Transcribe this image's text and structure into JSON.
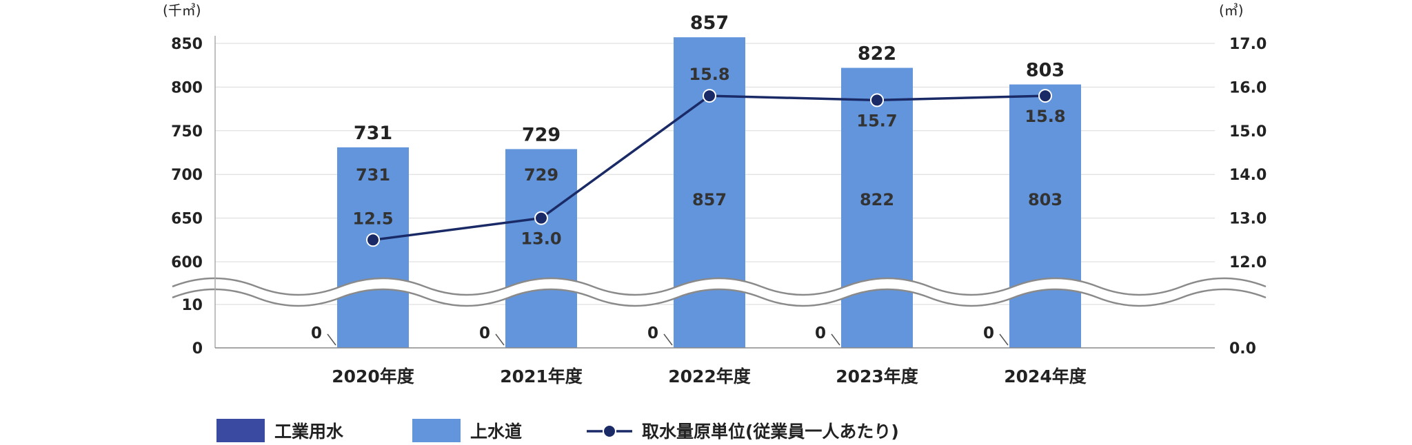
{
  "chart_data": {
    "type": "bar",
    "categories": [
      "2020年度",
      "2021年度",
      "2022年度",
      "2023年度",
      "2024年度"
    ],
    "series": [
      {
        "name": "工業用水",
        "type": "bar",
        "axis": "left",
        "color": "#3a4aa0",
        "values": [
          0,
          0,
          0,
          0,
          0
        ],
        "labels": [
          "0",
          "0",
          "0",
          "0",
          "0"
        ]
      },
      {
        "name": "上水道",
        "type": "bar",
        "axis": "left",
        "color": "#6295dc",
        "values": [
          731,
          729,
          857,
          822,
          803
        ],
        "labels": [
          "731",
          "729",
          "857",
          "822",
          "803"
        ],
        "total_labels": [
          "731",
          "729",
          "857",
          "822",
          "803"
        ]
      },
      {
        "name": "取水量原単位(従業員一人あたり)",
        "type": "line",
        "axis": "right",
        "color": "#1a2a66",
        "values": [
          12.5,
          13.0,
          15.8,
          15.7,
          15.8
        ],
        "labels": [
          "12.5",
          "13.0",
          "15.8",
          "15.7",
          "15.8"
        ]
      }
    ],
    "y_left": {
      "unit": "(千㎥)",
      "ticks_upper": [
        "600",
        "650",
        "700",
        "750",
        "800",
        "850"
      ],
      "ticks_lower": [
        "0",
        "10"
      ],
      "range_upper": [
        600,
        850
      ],
      "range_lower": [
        0,
        10
      ],
      "axis_break": true
    },
    "y_right": {
      "unit": "(㎥)",
      "ticks_upper": [
        "12.0",
        "13.0",
        "14.0",
        "15.0",
        "16.0",
        "17.0"
      ],
      "ticks_lower": [
        "0.0"
      ],
      "range_upper": [
        12.0,
        17.0
      ]
    },
    "grid": true,
    "legend_position": "bottom"
  }
}
